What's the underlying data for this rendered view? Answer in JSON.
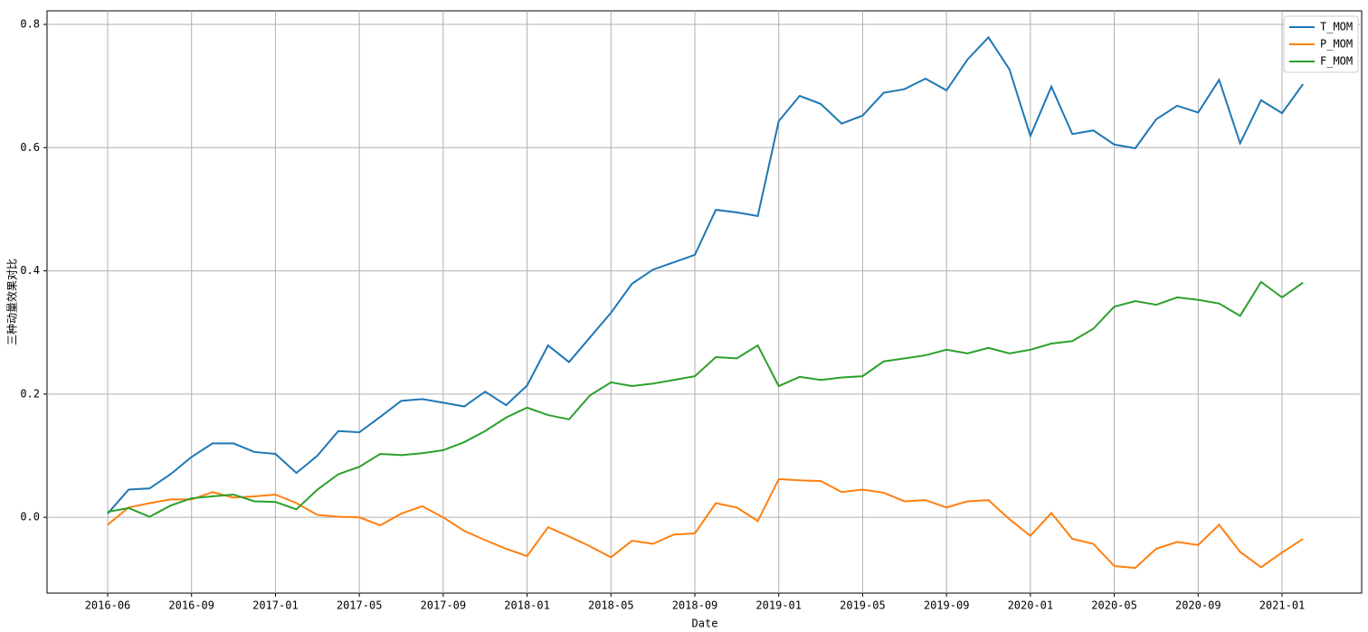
{
  "chart_data": {
    "type": "line",
    "xlabel": "Date",
    "ylabel": "三种动量效果对比",
    "categories": [
      "2016-06",
      null,
      null,
      null,
      "2016-09",
      null,
      null,
      null,
      "2017-01",
      null,
      null,
      null,
      "2017-05",
      null,
      null,
      null,
      "2017-09",
      null,
      null,
      null,
      "2018-01",
      null,
      null,
      null,
      "2018-05",
      null,
      null,
      null,
      "2018-09",
      null,
      null,
      null,
      "2019-01",
      null,
      null,
      null,
      "2019-05",
      null,
      null,
      null,
      "2019-09",
      null,
      null,
      null,
      "2020-01",
      null,
      null,
      null,
      "2020-05",
      null,
      null,
      null,
      "2020-09",
      null,
      null,
      null,
      "2021-01",
      null
    ],
    "ylim": [
      -0.123,
      0.822
    ],
    "yticks": [
      {
        "value": 0,
        "label": "0.0"
      },
      0.2,
      0.4,
      0.6,
      0.8
    ],
    "grid": true,
    "legend": "upper right",
    "series": [
      {
        "name": "T_MOM",
        "color": "#1f77b4",
        "values": [
          0.006,
          0.045,
          0.047,
          0.07,
          0.098,
          0.12,
          0.12,
          0.106,
          0.103,
          0.072,
          0.1,
          0.14,
          0.138,
          0.163,
          0.189,
          0.192,
          0.186,
          0.18,
          0.204,
          0.182,
          0.214,
          0.279,
          0.252,
          0.292,
          0.332,
          0.379,
          0.402,
          0.414,
          0.426,
          0.499,
          0.495,
          0.489,
          0.643,
          0.684,
          0.671,
          0.639,
          0.652,
          0.689,
          0.695,
          0.712,
          0.693,
          0.743,
          0.779,
          0.727,
          0.619,
          0.699,
          0.622,
          0.628,
          0.605,
          0.599,
          0.646,
          0.668,
          0.657,
          0.71,
          0.607,
          0.677,
          0.656,
          0.703
        ]
      },
      {
        "name": "P_MOM",
        "color": "#ff7f0e",
        "values": [
          -0.012,
          0.016,
          0.023,
          0.029,
          0.029,
          0.041,
          0.032,
          0.034,
          0.037,
          0.023,
          0.004,
          0.001,
          0.0,
          -0.013,
          0.006,
          0.018,
          0.0,
          -0.022,
          -0.037,
          -0.051,
          -0.063,
          -0.016,
          -0.031,
          -0.047,
          -0.065,
          -0.038,
          -0.043,
          -0.028,
          -0.026,
          0.023,
          0.016,
          -0.006,
          0.062,
          0.06,
          0.059,
          0.041,
          0.045,
          0.04,
          0.026,
          0.028,
          0.016,
          0.026,
          0.028,
          -0.003,
          -0.03,
          0.007,
          -0.035,
          -0.043,
          -0.079,
          -0.082,
          -0.051,
          -0.04,
          -0.045,
          -0.012,
          -0.056,
          -0.081,
          -0.057,
          -0.035
        ]
      },
      {
        "name": "F_MOM",
        "color": "#2ca02c",
        "values": [
          0.009,
          0.015,
          0.001,
          0.019,
          0.031,
          0.034,
          0.037,
          0.026,
          0.025,
          0.013,
          0.045,
          0.07,
          0.082,
          0.103,
          0.101,
          0.104,
          0.109,
          0.122,
          0.14,
          0.162,
          0.178,
          0.166,
          0.159,
          0.198,
          0.219,
          0.213,
          0.217,
          0.223,
          0.229,
          0.26,
          0.258,
          0.279,
          0.213,
          0.228,
          0.223,
          0.227,
          0.229,
          0.253,
          0.258,
          0.263,
          0.272,
          0.266,
          0.275,
          0.266,
          0.272,
          0.282,
          0.286,
          0.306,
          0.342,
          0.351,
          0.345,
          0.357,
          0.353,
          0.347,
          0.327,
          0.382,
          0.357,
          0.381
        ]
      }
    ]
  }
}
